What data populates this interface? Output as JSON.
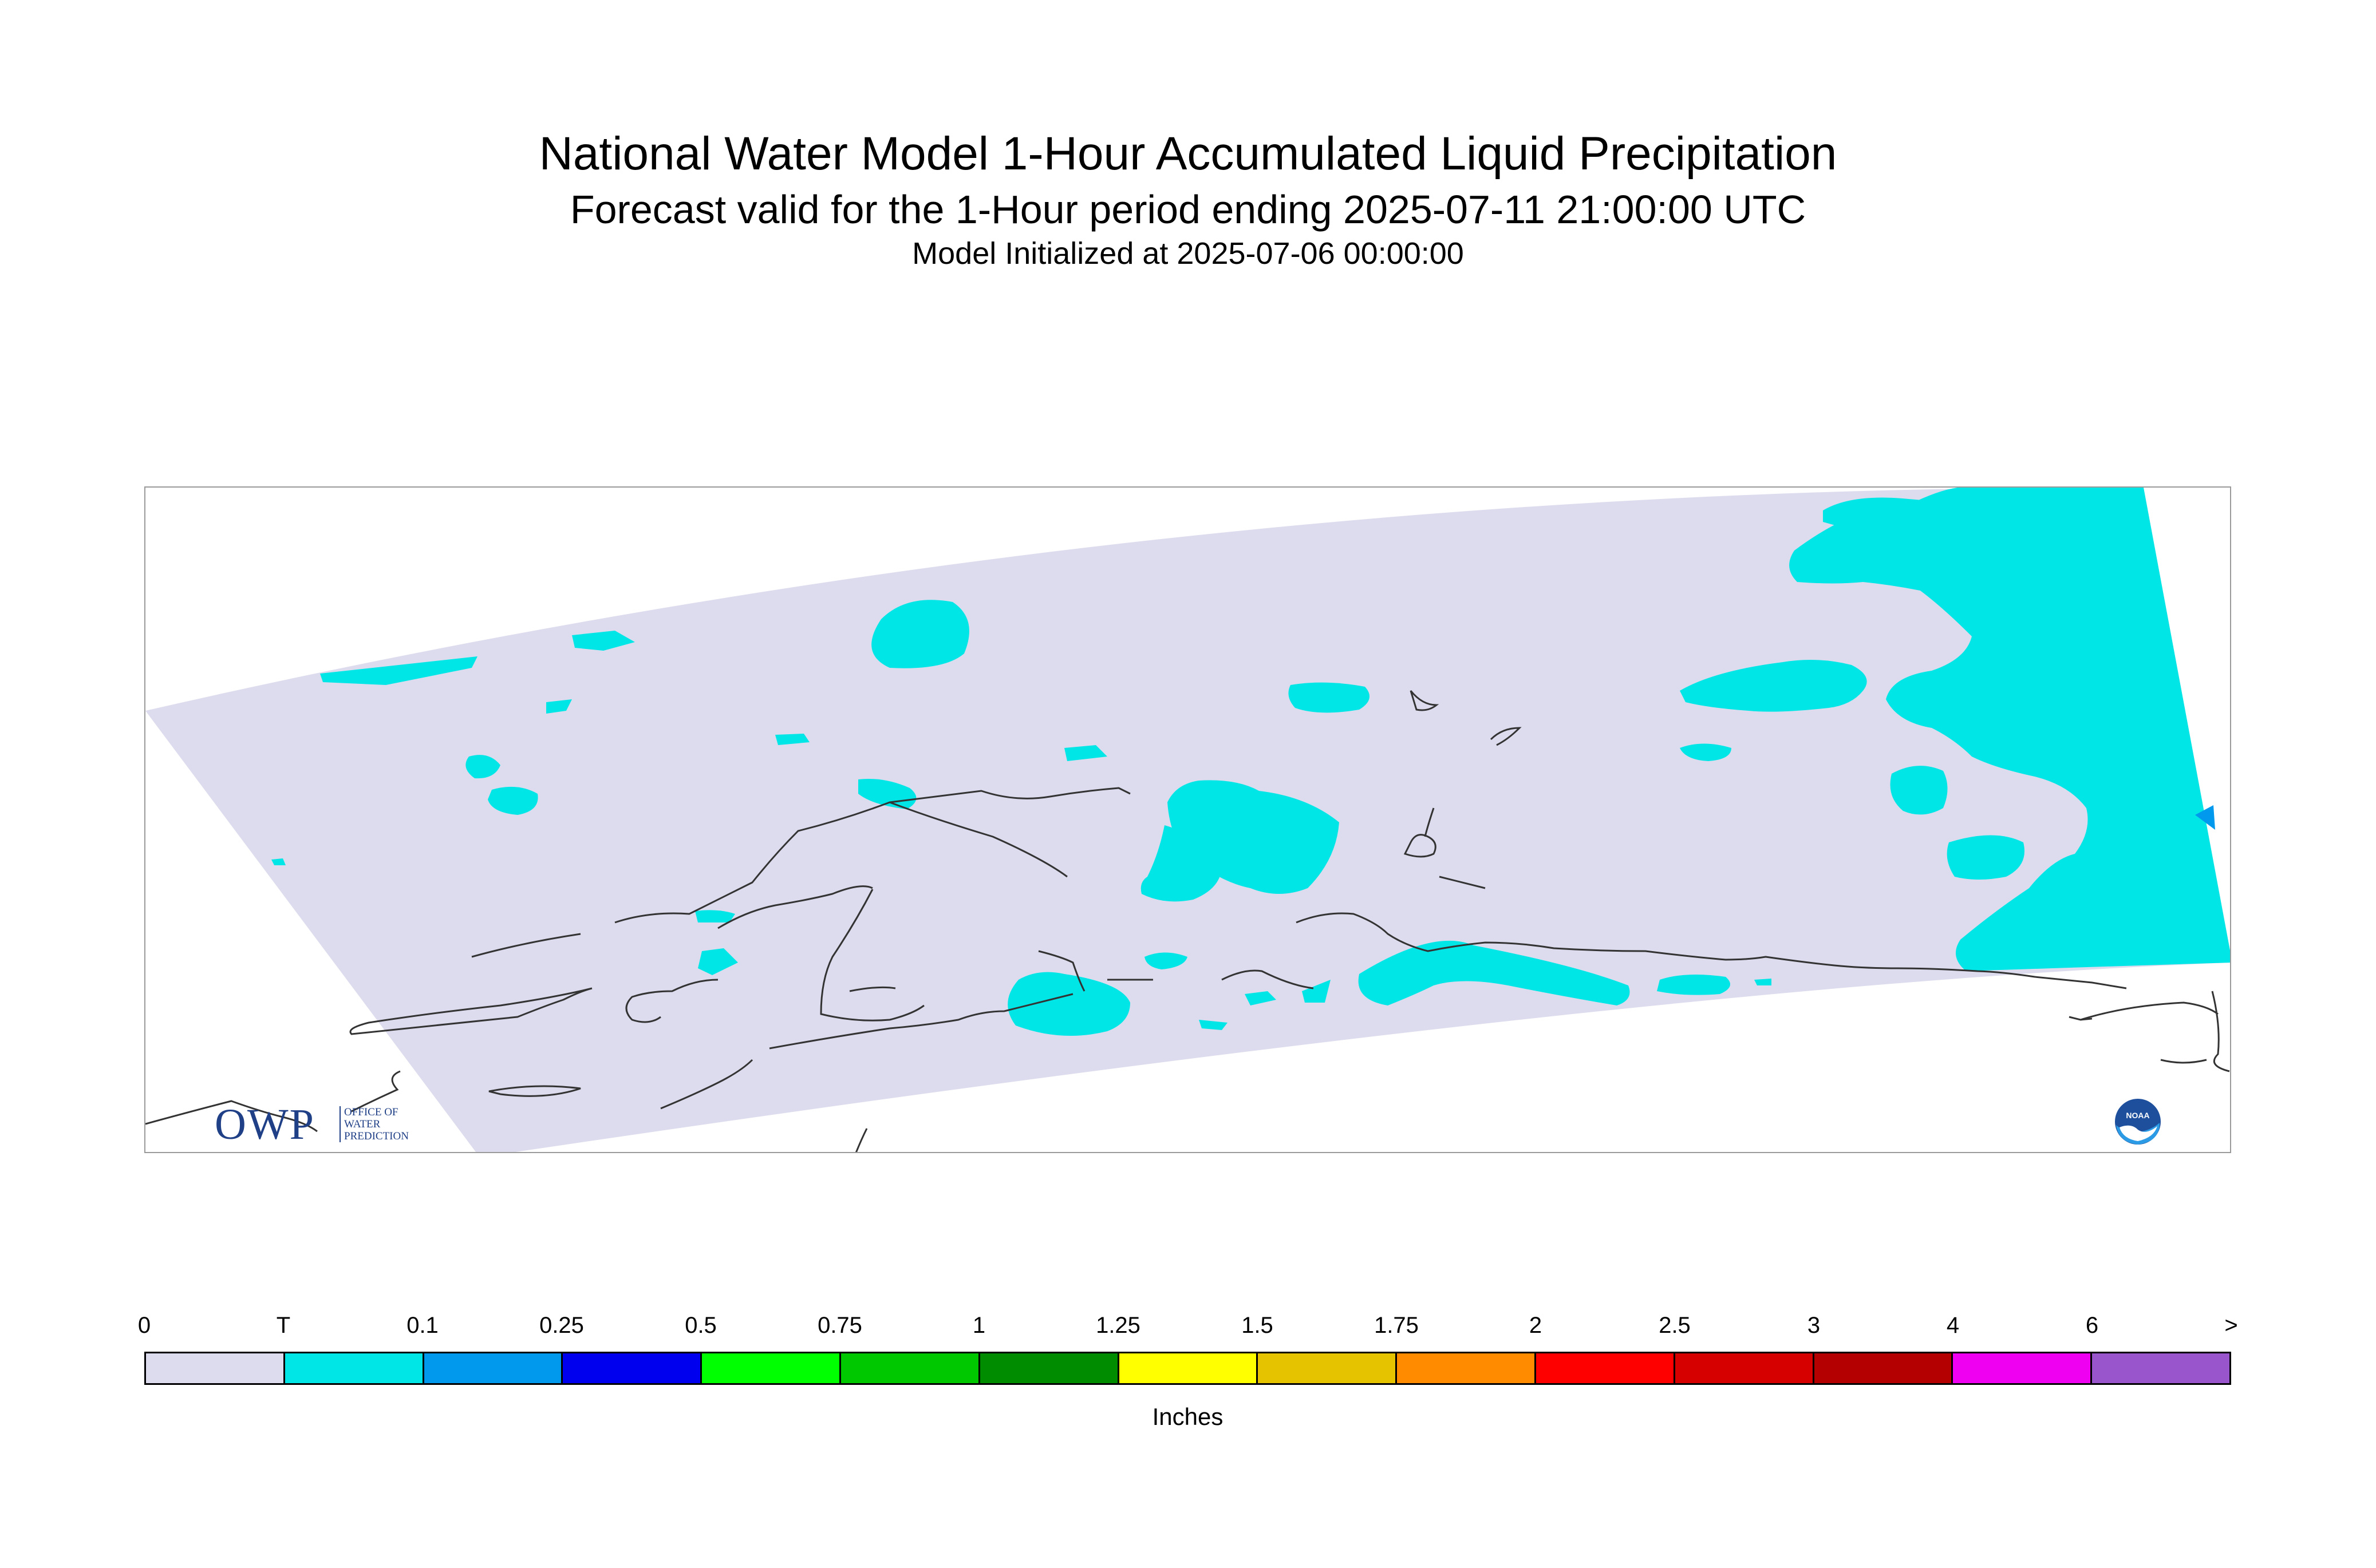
{
  "title": {
    "main": "National Water Model 1-Hour Accumulated Liquid Precipitation",
    "sub": "Forecast valid for the 1-Hour period ending 2025-07-11 21:00:00 UTC",
    "init": "Model Initialized at 2025-07-06 00:00:00"
  },
  "map": {
    "domain_fill_color": "#dcdcee",
    "precip_colors": {
      "trace": "#00e6e6",
      "light": "#0099ee"
    },
    "coastline_color": "#333333",
    "frame_color": "#9a9a9a"
  },
  "logos": {
    "owp": {
      "letters": "OWP",
      "line1": "OFFICE OF",
      "line2": "WATER",
      "line3": "PREDICTION"
    },
    "noaa": {
      "text": "NOAA"
    }
  },
  "legend": {
    "unit": "Inches",
    "tick_labels": [
      "0",
      "T",
      "0.1",
      "0.25",
      "0.5",
      "0.75",
      "1",
      "1.25",
      "1.5",
      "1.75",
      "2",
      "2.5",
      "3",
      "4",
      "6",
      ">"
    ],
    "colors": [
      "#dcdcee",
      "#00e6e6",
      "#0099ee",
      "#0000ee",
      "#00ff00",
      "#00c800",
      "#008c00",
      "#ffff00",
      "#e6c300",
      "#ff8c00",
      "#ff0000",
      "#d70000",
      "#b40000",
      "#f000f0",
      "#9955cc"
    ]
  }
}
